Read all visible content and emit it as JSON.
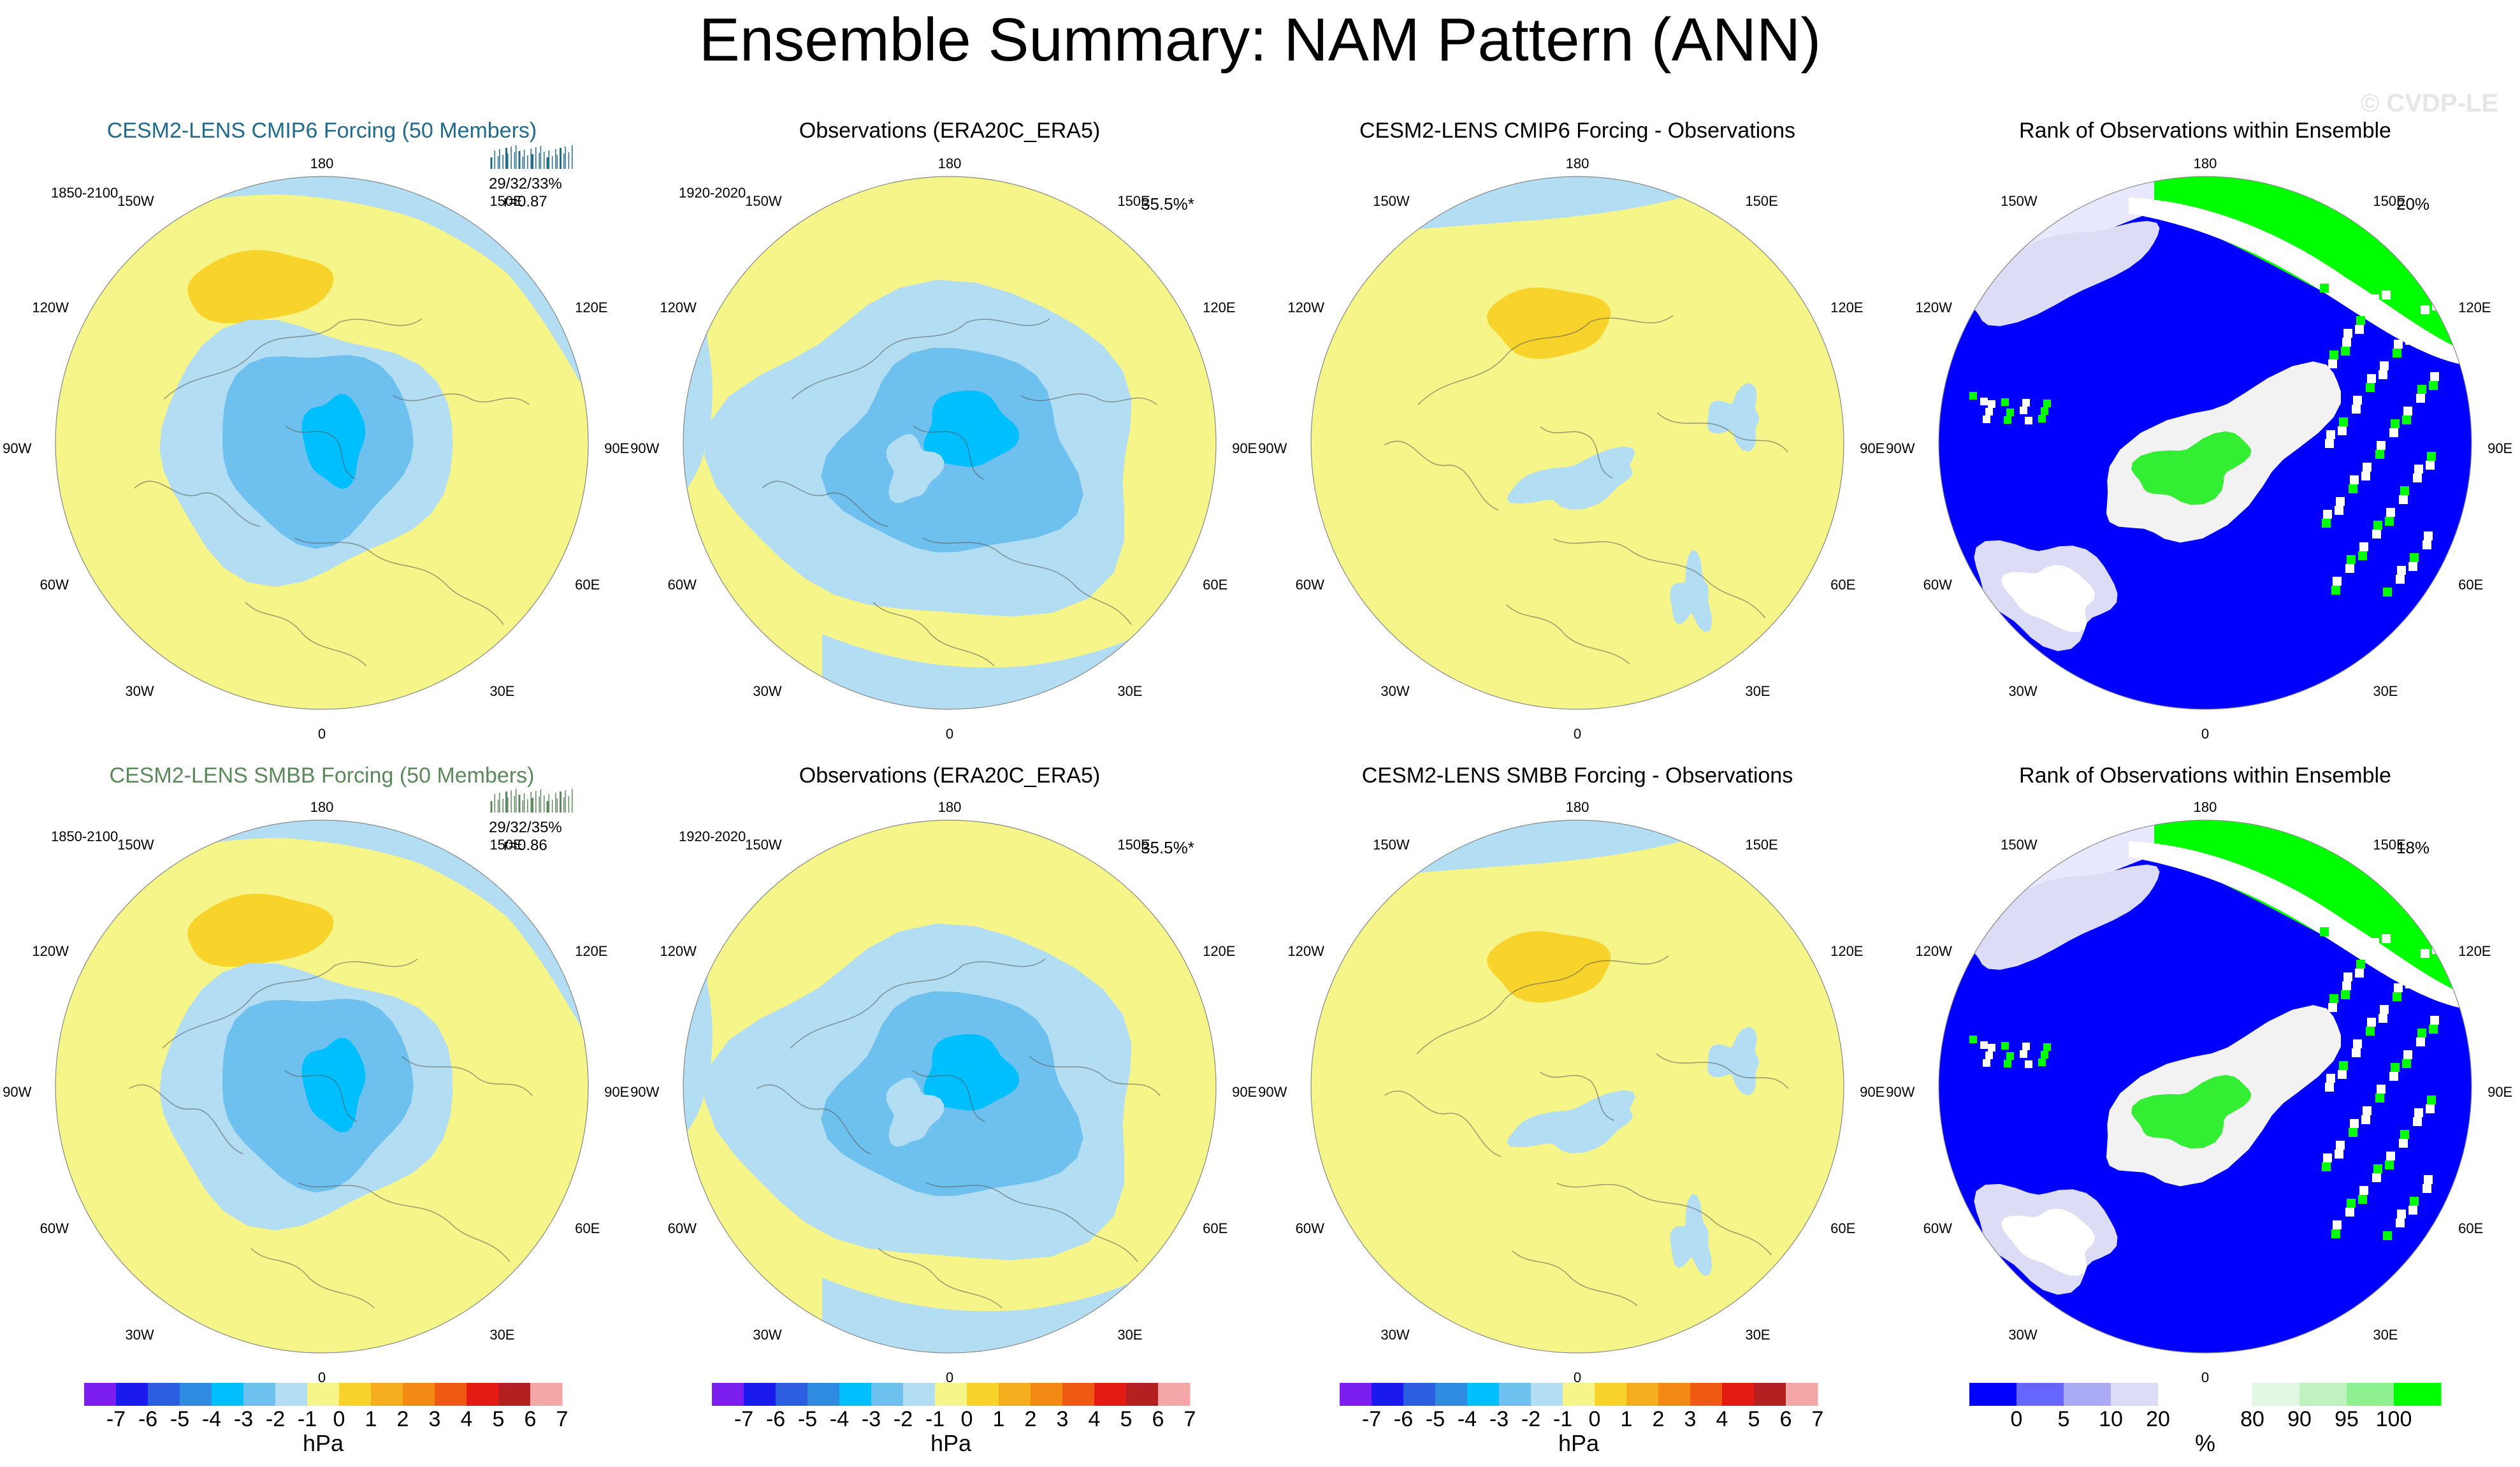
{
  "title": "Ensemble Summary: NAM Pattern (ANN)",
  "copyright": "© CVDP-LE",
  "colors": {
    "ens1_title": "#1e6b8f",
    "ens2_title": "#5a8a5a",
    "land": "#f6f58a",
    "neg1": "#b2ddf2",
    "neg2": "#6ec0ef",
    "neg3": "#00bfff",
    "pos2": "#f8d32b",
    "rank_blue": "#0000ff",
    "rank_green": "#00ff00",
    "rank_white": "#ffffff"
  },
  "compass": {
    "top": "180",
    "bottom": "0",
    "l150": "150W",
    "l120": "120W",
    "l90": "90W",
    "l60": "60W",
    "l30": "30W",
    "r150": "150E",
    "r120": "120E",
    "r90": "90E",
    "r60": "60E",
    "r30": "30E"
  },
  "rows": [
    {
      "ens_title": "CESM2-LENS CMIP6 Forcing (50 Members)",
      "ens_period": "1850-2100",
      "ens_stat1": "29/32/33%",
      "ens_stat2": "r=0.87",
      "obs_title": "Observations (ERA20C_ERA5)",
      "obs_period": "1920-2020",
      "obs_stat": "35.5%*",
      "diff_title": "CESM2-LENS CMIP6 Forcing - Observations",
      "rank_title": "Rank of Observations within Ensemble",
      "rank_stat": "20%"
    },
    {
      "ens_title": "CESM2-LENS SMBB Forcing (50 Members)",
      "ens_period": "1850-2100",
      "ens_stat1": "29/32/35%",
      "ens_stat2": "r=0.86",
      "obs_title": "Observations (ERA20C_ERA5)",
      "obs_period": "1920-2020",
      "obs_stat": "35.5%*",
      "diff_title": "CESM2-LENS SMBB Forcing - Observations",
      "rank_title": "Rank of Observations within Ensemble",
      "rank_stat": "18%"
    }
  ],
  "chart_data": [
    {
      "type": "heatmap",
      "projection": "polar-stereographic (north)",
      "variable": "NAM sea level pressure pattern",
      "units": "hPa",
      "colorbar": {
        "colors": [
          "#7d1ef0",
          "#1a1aee",
          "#2b5fe0",
          "#2e8be0",
          "#00bfff",
          "#6ec0ef",
          "#b2ddf2",
          "#f6f58a",
          "#f8d32b",
          "#f6ae1e",
          "#f38a14",
          "#ee5a12",
          "#e41b12",
          "#b41f1f",
          "#f4a7a7"
        ],
        "ticks": [
          "-7",
          "-6",
          "-5",
          "-4",
          "-3",
          "-2",
          "-1",
          "0",
          "1",
          "2",
          "3",
          "4",
          "5",
          "6",
          "7"
        ],
        "label": "hPa"
      }
    },
    {
      "type": "heatmap",
      "projection": "polar-stereographic (north)",
      "variable": "Rank of observations within ensemble",
      "units": "%",
      "colorbar": {
        "colors": [
          "#0000ff",
          "#6666ff",
          "#aaaaf5",
          "#dcdcf6",
          "#ffffff",
          "#ffffff",
          "#e2f8e2",
          "#c0f2c0",
          "#8ef08e",
          "#00ff00"
        ],
        "ticks": [
          "0",
          "5",
          "10",
          "20",
          "80",
          "90",
          "95",
          "100"
        ],
        "label": "%"
      }
    }
  ],
  "colorbars": {
    "hpa_ticks": [
      "-7",
      "-6",
      "-5",
      "-4",
      "-3",
      "-2",
      "-1",
      "0",
      "1",
      "2",
      "3",
      "4",
      "5",
      "6",
      "7"
    ],
    "hpa_units": "hPa",
    "rank_ticks": [
      "0",
      "5",
      "10",
      "20",
      "80",
      "90",
      "95",
      "100"
    ],
    "rank_units": "%"
  }
}
